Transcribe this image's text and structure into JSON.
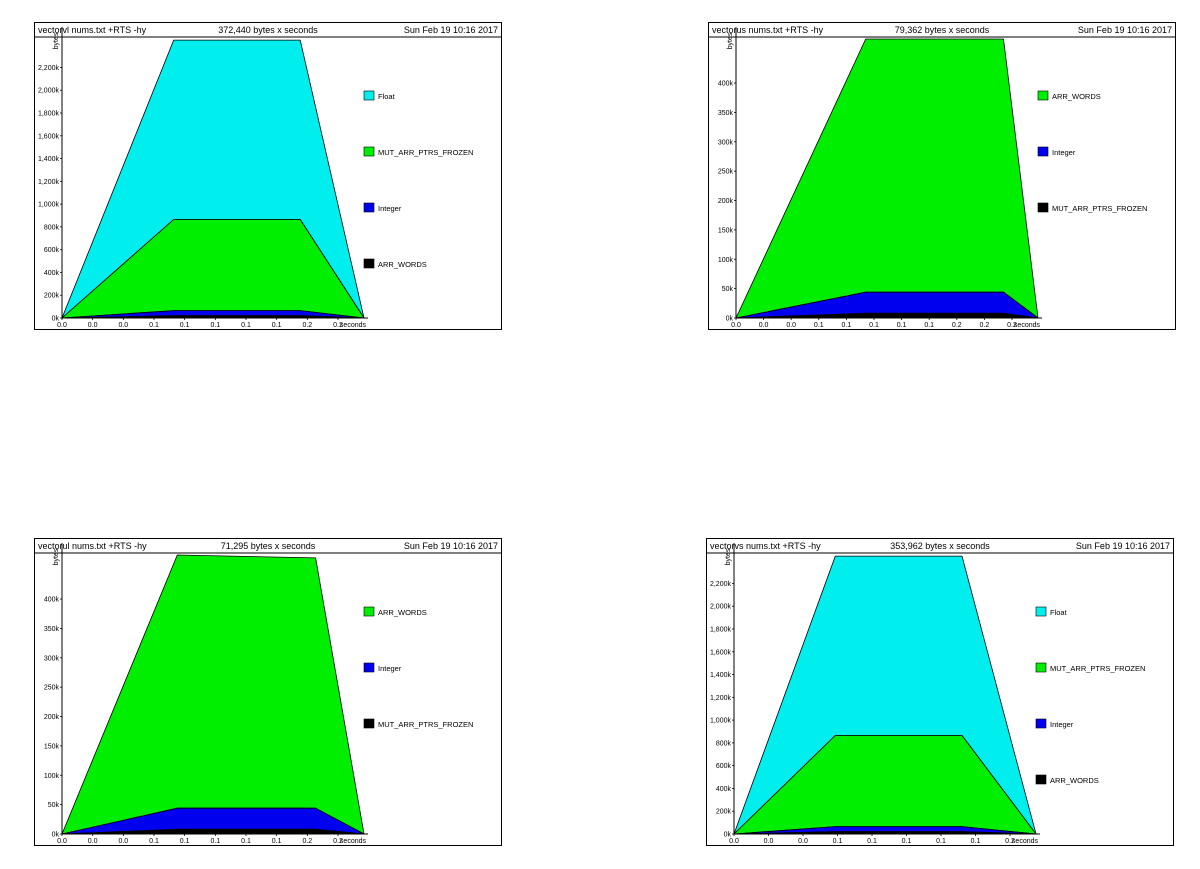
{
  "chart_data": [
    {
      "type": "area",
      "header": {
        "program": "vectorvl nums.txt +RTS -hy",
        "total": "372,440 bytes x seconds",
        "date": "Sun Feb 19 10:16 2017"
      },
      "ylabel": "bytes",
      "xlabel": "seconds",
      "ylim": [
        0,
        2450
      ],
      "yticks": [
        0,
        200,
        400,
        600,
        800,
        1000,
        1200,
        1400,
        1600,
        1800,
        2000,
        2200
      ],
      "ytick_labels": [
        "0k",
        "200k",
        "400k",
        "600k",
        "800k",
        "1,000k",
        "1,200k",
        "1,400k",
        "1,600k",
        "1,800k",
        "2,000k",
        "2,200k"
      ],
      "xlim": [
        0,
        0.265
      ],
      "xtick_labels": [
        "0.0",
        "0.0",
        "0.0",
        "0.1",
        "0.1",
        "0.1",
        "0.1",
        "0.1",
        "0.2",
        "0.2"
      ],
      "x": [
        0,
        0.098,
        0.209,
        0.265
      ],
      "series": [
        {
          "name": "ARR_WORDS",
          "color": "#000000",
          "values": [
            0,
            20,
            20,
            0
          ]
        },
        {
          "name": "Integer",
          "color": "#0000ee",
          "values": [
            0,
            45,
            45,
            0
          ]
        },
        {
          "name": "MUT_ARR_PTRS_FROZEN",
          "color": "#00ee00",
          "values": [
            0,
            800,
            800,
            0
          ]
        },
        {
          "name": "Float",
          "color": "#00eeee",
          "values": [
            0,
            1575,
            1575,
            0
          ]
        }
      ],
      "legend_order": [
        "Float",
        "MUT_ARR_PTRS_FROZEN",
        "Integer",
        "ARR_WORDS"
      ]
    },
    {
      "type": "area",
      "header": {
        "program": "vectorus nums.txt +RTS -hy",
        "total": "79,362 bytes x seconds",
        "date": "Sun Feb 19 10:16 2017"
      },
      "ylabel": "bytes",
      "xlabel": "seconds",
      "ylim": [
        0,
        475
      ],
      "yticks": [
        0,
        50,
        100,
        150,
        200,
        250,
        300,
        350,
        400
      ],
      "ytick_labels": [
        "0k",
        "50k",
        "100k",
        "150k",
        "200k",
        "250k",
        "300k",
        "350k",
        "400k"
      ],
      "xlim": [
        0,
        0.298
      ],
      "xtick_labels": [
        "0.0",
        "0.0",
        "0.0",
        "0.1",
        "0.1",
        "0.1",
        "0.1",
        "0.1",
        "0.2",
        "0.2",
        "0.2"
      ],
      "x": [
        0,
        0.128,
        0.264,
        0.298
      ],
      "series": [
        {
          "name": "MUT_ARR_PTRS_FROZEN",
          "color": "#000000",
          "values": [
            0,
            8,
            8,
            0
          ]
        },
        {
          "name": "Integer",
          "color": "#0000ee",
          "values": [
            0,
            36,
            36,
            0
          ]
        },
        {
          "name": "ARR_WORDS",
          "color": "#00ee00",
          "values": [
            0,
            431,
            431,
            0
          ]
        }
      ],
      "legend_order": [
        "ARR_WORDS",
        "Integer",
        "MUT_ARR_PTRS_FROZEN"
      ]
    },
    {
      "type": "area",
      "header": {
        "program": "vectorul nums.txt +RTS -hy",
        "total": "71,295 bytes x seconds",
        "date": "Sun Feb 19 10:16 2017"
      },
      "ylabel": "bytes",
      "xlabel": "seconds",
      "ylim": [
        0,
        475
      ],
      "yticks": [
        0,
        50,
        100,
        150,
        200,
        250,
        300,
        350,
        400
      ],
      "ytick_labels": [
        "0k",
        "50k",
        "100k",
        "150k",
        "200k",
        "250k",
        "300k",
        "350k",
        "400k"
      ],
      "xlim": [
        0,
        0.262
      ],
      "xtick_labels": [
        "0.0",
        "0.0",
        "0.0",
        "0.1",
        "0.1",
        "0.1",
        "0.1",
        "0.1",
        "0.2",
        "0.2"
      ],
      "x": [
        0,
        0.1,
        0.22,
        0.262
      ],
      "series": [
        {
          "name": "MUT_ARR_PTRS_FROZEN",
          "color": "#000000",
          "values": [
            0,
            8,
            8,
            0
          ]
        },
        {
          "name": "Integer",
          "color": "#0000ee",
          "values": [
            0,
            36,
            36,
            0
          ]
        },
        {
          "name": "ARR_WORDS",
          "color": "#00ee00",
          "values": [
            0,
            431,
            426,
            0
          ]
        }
      ],
      "legend_order": [
        "ARR_WORDS",
        "Integer",
        "MUT_ARR_PTRS_FROZEN"
      ]
    },
    {
      "type": "area",
      "header": {
        "program": "vectorvs nums.txt +RTS -hy",
        "total": "353,962 bytes x seconds",
        "date": "Sun Feb 19 10:16 2017"
      },
      "ylabel": "bytes",
      "xlabel": "seconds",
      "ylim": [
        0,
        2450
      ],
      "yticks": [
        0,
        200,
        400,
        600,
        800,
        1000,
        1200,
        1400,
        1600,
        1800,
        2000,
        2200
      ],
      "ytick_labels": [
        "0k",
        "200k",
        "400k",
        "600k",
        "800k",
        "1,000k",
        "1,200k",
        "1,400k",
        "1,600k",
        "1,800k",
        "2,000k",
        "2,200k"
      ],
      "xlim": [
        0,
        0.298
      ],
      "xtick_labels": [
        "0.0",
        "0.0",
        "0.0",
        "0.1",
        "0.1",
        "0.1",
        "0.1",
        "0.1",
        "0.2"
      ],
      "x": [
        0,
        0.1,
        0.225,
        0.298
      ],
      "series": [
        {
          "name": "ARR_WORDS",
          "color": "#000000",
          "values": [
            0,
            20,
            20,
            0
          ]
        },
        {
          "name": "Integer",
          "color": "#0000ee",
          "values": [
            0,
            45,
            45,
            0
          ]
        },
        {
          "name": "MUT_ARR_PTRS_FROZEN",
          "color": "#00ee00",
          "values": [
            0,
            800,
            800,
            0
          ]
        },
        {
          "name": "Float",
          "color": "#00eeee",
          "values": [
            0,
            1575,
            1575,
            0
          ]
        }
      ],
      "legend_order": [
        "Float",
        "MUT_ARR_PTRS_FROZEN",
        "Integer",
        "ARR_WORDS"
      ]
    }
  ]
}
